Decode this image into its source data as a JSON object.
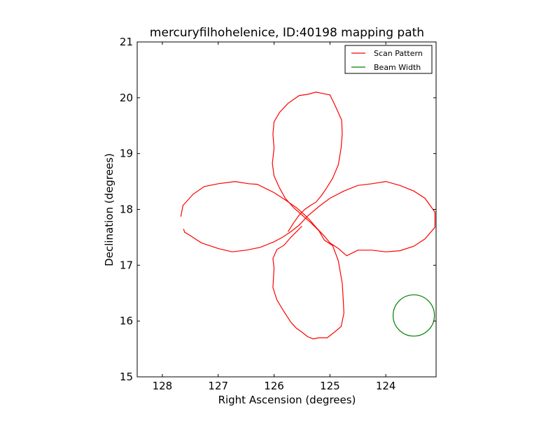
{
  "chart_data": {
    "type": "line",
    "title": "mercuryfilhohelenice, ID:40198 mapping path",
    "xlabel": "Right Ascension (degrees)",
    "ylabel": "Declination (degrees)",
    "xlim": [
      128.45,
      123.1
    ],
    "ylim": [
      15,
      21
    ],
    "x_ticks": [
      128,
      127,
      126,
      125,
      124
    ],
    "y_ticks": [
      15,
      16,
      17,
      18,
      19,
      20,
      21
    ],
    "x_tick_labels": [
      "128",
      "127",
      "126",
      "125",
      "124"
    ],
    "y_tick_labels": [
      "15",
      "16",
      "17",
      "18",
      "19",
      "20",
      "21"
    ],
    "grid": false,
    "legend_position": "top-right",
    "colors": {
      "scan": "#ff0000",
      "beam": "#008000"
    },
    "series": [
      {
        "name": "Scan Pattern",
        "kind": "line",
        "x": [
          127.67,
          127.63,
          127.45,
          127.25,
          127.0,
          126.7,
          126.45,
          126.3,
          126.0,
          125.8,
          125.6,
          125.45,
          125.35,
          125.25,
          125.1,
          125.0,
          124.85,
          124.7,
          124.5,
          124.25,
          124.0,
          123.75,
          123.5,
          123.3,
          123.12,
          123.12,
          123.3,
          123.5,
          123.75,
          124.0,
          124.25,
          124.5,
          124.75,
          125.0,
          125.2,
          125.4,
          125.55,
          125.7,
          125.85,
          126.0,
          126.25,
          126.5,
          126.75,
          127.0,
          127.3,
          127.5,
          127.6,
          127.62
        ],
        "y": [
          17.87,
          18.07,
          18.27,
          18.41,
          18.46,
          18.5,
          18.46,
          18.45,
          18.3,
          18.17,
          18.03,
          17.9,
          17.8,
          17.68,
          17.52,
          17.4,
          17.3,
          17.17,
          17.27,
          17.27,
          17.24,
          17.26,
          17.34,
          17.47,
          17.68,
          17.95,
          18.2,
          18.33,
          18.43,
          18.5,
          18.46,
          18.43,
          18.33,
          18.2,
          18.05,
          17.88,
          17.72,
          17.6,
          17.5,
          17.42,
          17.32,
          17.27,
          17.24,
          17.3,
          17.4,
          17.53,
          17.59,
          17.65
        ]
      },
      {
        "name": "",
        "kind": "line",
        "x": [
          125.75,
          125.65,
          125.55,
          125.45,
          125.35,
          125.25,
          125.15,
          125.05,
          124.95,
          124.85,
          124.8,
          124.78,
          124.79,
          124.88,
          124.95,
          125.0,
          125.1,
          125.25,
          125.4,
          125.55,
          125.75,
          125.9,
          126.0,
          126.02,
          126.0,
          126.03,
          126.0,
          125.9,
          125.8,
          125.65,
          125.5,
          125.35,
          125.2,
          125.1,
          124.95,
          124.85,
          124.78,
          124.76,
          124.75,
          124.8,
          124.92,
          125.05,
          125.2,
          125.3,
          125.4,
          125.5,
          125.6,
          125.7
        ],
        "y": [
          17.6,
          17.76,
          17.9,
          18.0,
          18.07,
          18.13,
          18.25,
          18.4,
          18.56,
          18.8,
          19.1,
          19.35,
          19.6,
          19.8,
          19.95,
          20.05,
          20.07,
          20.1,
          20.06,
          20.04,
          19.9,
          19.74,
          19.57,
          19.35,
          19.1,
          18.82,
          18.6,
          18.38,
          18.2,
          18.03,
          17.9,
          17.77,
          17.62,
          17.45,
          17.35,
          17.08,
          16.68,
          16.35,
          16.14,
          15.9,
          15.8,
          15.7,
          15.7,
          15.68,
          15.72,
          15.8,
          15.87,
          15.98
        ]
      },
      {
        "name": "",
        "kind": "line",
        "x": [
          125.7,
          125.83,
          125.95,
          126.02,
          126.0,
          126.02,
          125.95,
          125.82,
          125.7,
          125.6,
          125.5
        ],
        "y": [
          15.98,
          16.18,
          16.38,
          16.6,
          16.95,
          17.12,
          17.28,
          17.36,
          17.5,
          17.6,
          17.7
        ]
      },
      {
        "name": "Beam Width",
        "kind": "circle",
        "center": [
          123.5,
          16.1
        ],
        "radius_deg": 0.37
      }
    ]
  }
}
